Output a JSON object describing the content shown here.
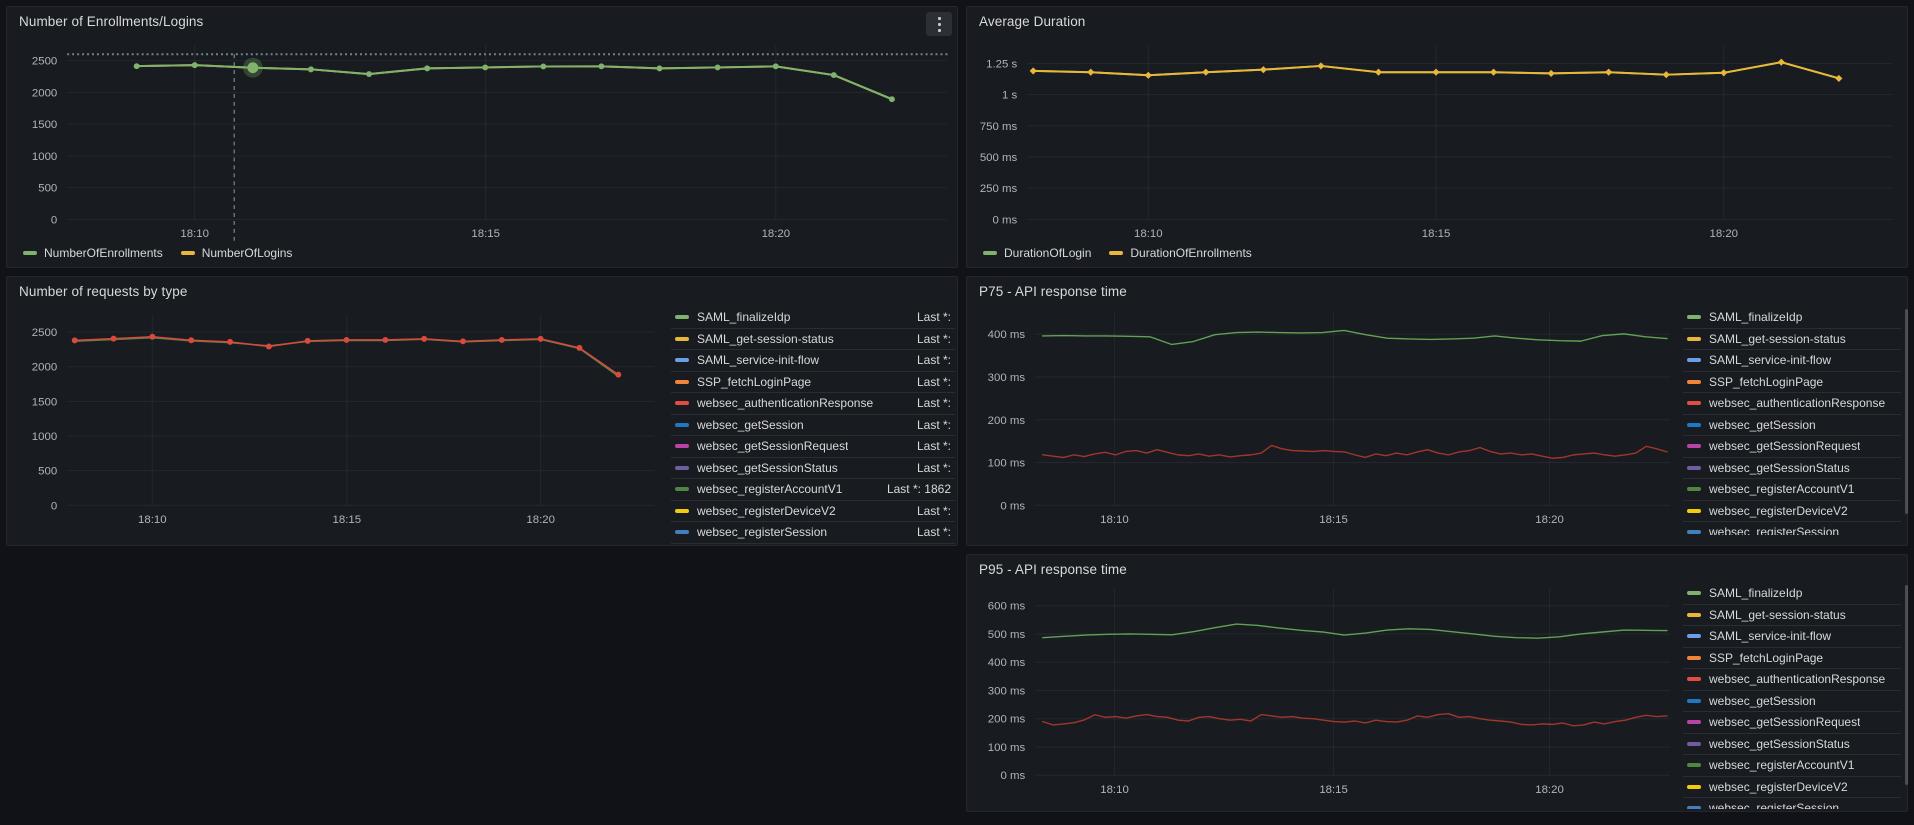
{
  "colors": {
    "page_bg": "#111217",
    "panel_bg": "#181b1f",
    "panel_border": "#23262c",
    "grid": "rgba(204,204,220,0.07)",
    "title_text": "#d8d9da",
    "tick_text": "rgba(204,204,220,0.85)",
    "legend_text": "#d8d9da",
    "threshold": "#6e8594",
    "crosshair": "#5e7d8c"
  },
  "legend_value_prefix": "Last *:",
  "chart_data": [
    {
      "id": "enrollments",
      "type": "line",
      "title": "Number of Enrollments/Logins",
      "ylim": [
        0,
        2750
      ],
      "grid": true,
      "legend_position": "bottom",
      "yticks": [
        {
          "v": 0,
          "label": "0"
        },
        {
          "v": 500,
          "label": "500"
        },
        {
          "v": 1000,
          "label": "1000"
        },
        {
          "v": 1500,
          "label": "1500"
        },
        {
          "v": 2000,
          "label": "2000"
        },
        {
          "v": 2500,
          "label": "2500"
        }
      ],
      "xticks": [
        {
          "f": 0.145,
          "label": "18:10"
        },
        {
          "f": 0.476,
          "label": "18:15"
        },
        {
          "f": 0.806,
          "label": "18:20"
        }
      ],
      "threshold": {
        "v": 2600
      },
      "crosshair_f": 0.19,
      "legend": [
        {
          "label": "NumberOfEnrollments",
          "color": "#7EB26D"
        },
        {
          "label": "NumberOfLogins",
          "color": "#EAB839"
        }
      ],
      "series": [
        {
          "name": "NumberOfLogins",
          "color": "#EAB839",
          "w": 2,
          "f0": 0.079,
          "f1": 0.938,
          "values": [
            2412,
            2428,
            2388,
            2362,
            2288,
            2378,
            2392,
            2408,
            2410,
            2378,
            2392,
            2410,
            2272,
            1892
          ]
        },
        {
          "name": "NumberOfEnrollments",
          "color": "#7EB26D",
          "w": 2,
          "f0": 0.079,
          "f1": 0.938,
          "marker": "circle",
          "hover_index": 2,
          "values": [
            2412,
            2428,
            2388,
            2362,
            2288,
            2378,
            2392,
            2408,
            2410,
            2378,
            2392,
            2410,
            2272,
            1892
          ]
        }
      ]
    },
    {
      "id": "avg_duration",
      "type": "line",
      "title": "Average Duration",
      "ylim": [
        0,
        1400
      ],
      "grid": true,
      "legend_position": "bottom",
      "yticks": [
        {
          "v": 0,
          "label": "0 ms"
        },
        {
          "v": 250,
          "label": "250 ms"
        },
        {
          "v": 500,
          "label": "500 ms"
        },
        {
          "v": 750,
          "label": "750 ms"
        },
        {
          "v": 1000,
          "label": "1 s"
        },
        {
          "v": 1250,
          "label": "1.25 s"
        }
      ],
      "xticks": [
        {
          "f": 0.14,
          "label": "18:10"
        },
        {
          "f": 0.4725,
          "label": "18:15"
        },
        {
          "f": 0.805,
          "label": "18:20"
        }
      ],
      "legend": [
        {
          "label": "DurationOfLogin",
          "color": "#7EB26D"
        },
        {
          "label": "DurationOfEnrollments",
          "color": "#EAB839"
        }
      ],
      "series": [
        {
          "name": "DurationOfLogin",
          "color": "#7EB26D",
          "w": 2,
          "f0": 0.007,
          "f1": 0.938,
          "values": [
            1190,
            1180,
            1155,
            1180,
            1200,
            1230,
            1180,
            1180,
            1180,
            1170,
            1180,
            1160,
            1175,
            1260,
            1130
          ]
        },
        {
          "name": "DurationOfEnrollments",
          "color": "#EAB839",
          "w": 2,
          "f0": 0.007,
          "f1": 0.938,
          "marker": "diamond",
          "values": [
            1190,
            1180,
            1155,
            1180,
            1200,
            1230,
            1180,
            1180,
            1180,
            1170,
            1180,
            1160,
            1175,
            1260,
            1130
          ]
        }
      ]
    },
    {
      "id": "requests",
      "type": "line",
      "title": "Number of requests by type",
      "ylim": [
        0,
        2750
      ],
      "grid": true,
      "legend_position": "right-table",
      "yticks": [
        {
          "v": 0,
          "label": "0"
        },
        {
          "v": 500,
          "label": "500"
        },
        {
          "v": 1000,
          "label": "1000"
        },
        {
          "v": 1500,
          "label": "1500"
        },
        {
          "v": 2000,
          "label": "2000"
        },
        {
          "v": 2500,
          "label": "2500"
        }
      ],
      "xticks": [
        {
          "f": 0.145,
          "label": "18:10"
        },
        {
          "f": 0.476,
          "label": "18:15"
        },
        {
          "f": 0.806,
          "label": "18:20"
        }
      ],
      "legend": [
        {
          "label": "SAML_finalizeIdp",
          "color": "#7EB26D",
          "last": "Last *:"
        },
        {
          "label": "SAML_get-session-status",
          "color": "#EAB839",
          "last": "Last *:"
        },
        {
          "label": "SAML_service-init-flow",
          "color": "#6C9FE8",
          "last": "Last *:"
        },
        {
          "label": "SSP_fetchLoginPage",
          "color": "#EF843C",
          "last": "Last *:"
        },
        {
          "label": "websec_authenticationResponse",
          "color": "#E24D42",
          "last": "Last *:"
        },
        {
          "label": "websec_getSession",
          "color": "#1F78C1",
          "last": "Last *:"
        },
        {
          "label": "websec_getSessionRequest",
          "color": "#BA43A9",
          "last": "Last *:"
        },
        {
          "label": "websec_getSessionStatus",
          "color": "#705DA0",
          "last": "Last *:"
        },
        {
          "label": "websec_registerAccountV1",
          "color": "#508642",
          "last": "Last *: 1862"
        },
        {
          "label": "websec_registerDeviceV2",
          "color": "#F2CC0C",
          "last": "Last *:"
        },
        {
          "label": "websec_registerSession",
          "color": "#447EBC",
          "last": "Last *:"
        }
      ],
      "series": [
        {
          "name": "websec_registerAccountV1",
          "color": "#508642",
          "w": 1.5,
          "f0": 0.013,
          "f1": 0.938,
          "values": [
            2368,
            2392,
            2418,
            2372,
            2348,
            2300,
            2364,
            2380,
            2378,
            2396,
            2358,
            2378,
            2394,
            2262,
            1862
          ]
        },
        {
          "name": "websec_authenticationResponse",
          "color": "#D9493E",
          "w": 1.5,
          "f0": 0.013,
          "f1": 0.938,
          "marker": "circle",
          "values": [
            2380,
            2405,
            2432,
            2382,
            2358,
            2292,
            2372,
            2386,
            2386,
            2402,
            2366,
            2386,
            2402,
            2272,
            1885
          ]
        }
      ]
    },
    {
      "id": "p75",
      "type": "line",
      "title": "P75 - API response time",
      "ylim": [
        0,
        455
      ],
      "grid": true,
      "legend_position": "right-list",
      "yticks": [
        {
          "v": 0,
          "label": "0 ms"
        },
        {
          "v": 100,
          "label": "100 ms"
        },
        {
          "v": 200,
          "label": "200 ms"
        },
        {
          "v": 300,
          "label": "300 ms"
        },
        {
          "v": 400,
          "label": "400 ms"
        }
      ],
      "xticks": [
        {
          "f": 0.125,
          "label": "18:10"
        },
        {
          "f": 0.47,
          "label": "18:15"
        },
        {
          "f": 0.81,
          "label": "18:20"
        }
      ],
      "legend": [
        {
          "label": "SAML_finalizeIdp",
          "color": "#7EB26D"
        },
        {
          "label": "SAML_get-session-status",
          "color": "#EAB839"
        },
        {
          "label": "SAML_service-init-flow",
          "color": "#6C9FE8"
        },
        {
          "label": "SSP_fetchLoginPage",
          "color": "#EF843C"
        },
        {
          "label": "websec_authenticationResponse",
          "color": "#E24D42"
        },
        {
          "label": "websec_getSession",
          "color": "#1F78C1"
        },
        {
          "label": "websec_getSessionRequest",
          "color": "#BA43A9"
        },
        {
          "label": "websec_getSessionStatus",
          "color": "#705DA0"
        },
        {
          "label": "websec_registerAccountV1",
          "color": "#508642"
        },
        {
          "label": "websec_registerDeviceV2",
          "color": "#F2CC0C"
        },
        {
          "label": "websec_registerSession",
          "color": "#447EBC"
        }
      ],
      "series": [
        {
          "name": "SAML_finalizeIdp",
          "color": "#61A156",
          "w": 1.4,
          "f0": 0.012,
          "f1": 0.995,
          "values": [
            396,
            397,
            396,
            396,
            395,
            394,
            376,
            383,
            399,
            404,
            405,
            404,
            403,
            404,
            409,
            399,
            391,
            389,
            388,
            389,
            391,
            396,
            391,
            387,
            385,
            384,
            397,
            401,
            394,
            390
          ]
        },
        {
          "name": "websec_authenticationResponse",
          "color": "#A1372C",
          "w": 1.4,
          "f0": 0.012,
          "f1": 0.995,
          "values": [
            118,
            115,
            112,
            118,
            114,
            120,
            124,
            118,
            126,
            128,
            122,
            130,
            124,
            118,
            116,
            120,
            115,
            118,
            113,
            116,
            118,
            122,
            140,
            132,
            128,
            127,
            126,
            128,
            126,
            125,
            118,
            112,
            120,
            116,
            122,
            118,
            125,
            130,
            122,
            118,
            125,
            128,
            135,
            126,
            120,
            122,
            118,
            120,
            115,
            110,
            112,
            118,
            120,
            122,
            118,
            115,
            118,
            122,
            138,
            132,
            125
          ]
        }
      ]
    },
    {
      "id": "p95",
      "type": "line",
      "title": "P95 - API response time",
      "ylim": [
        0,
        660
      ],
      "grid": true,
      "legend_position": "right-list",
      "yticks": [
        {
          "v": 0,
          "label": "0 ms"
        },
        {
          "v": 100,
          "label": "100 ms"
        },
        {
          "v": 200,
          "label": "200 ms"
        },
        {
          "v": 300,
          "label": "300 ms"
        },
        {
          "v": 400,
          "label": "400 ms"
        },
        {
          "v": 500,
          "label": "500 ms"
        },
        {
          "v": 600,
          "label": "600 ms"
        }
      ],
      "xticks": [
        {
          "f": 0.125,
          "label": "18:10"
        },
        {
          "f": 0.47,
          "label": "18:15"
        },
        {
          "f": 0.81,
          "label": "18:20"
        }
      ],
      "legend": [
        {
          "label": "SAML_finalizeIdp",
          "color": "#7EB26D"
        },
        {
          "label": "SAML_get-session-status",
          "color": "#EAB839"
        },
        {
          "label": "SAML_service-init-flow",
          "color": "#6C9FE8"
        },
        {
          "label": "SSP_fetchLoginPage",
          "color": "#EF843C"
        },
        {
          "label": "websec_authenticationResponse",
          "color": "#E24D42"
        },
        {
          "label": "websec_getSession",
          "color": "#1F78C1"
        },
        {
          "label": "websec_getSessionRequest",
          "color": "#BA43A9"
        },
        {
          "label": "websec_getSessionStatus",
          "color": "#705DA0"
        },
        {
          "label": "websec_registerAccountV1",
          "color": "#508642"
        },
        {
          "label": "websec_registerDeviceV2",
          "color": "#F2CC0C"
        },
        {
          "label": "websec_registerSession",
          "color": "#447EBC"
        }
      ],
      "series": [
        {
          "name": "SAML_finalizeIdp",
          "color": "#61A156",
          "w": 1.4,
          "f0": 0.012,
          "f1": 0.995,
          "values": [
            487,
            492,
            496,
            499,
            500,
            499,
            497,
            508,
            522,
            535,
            530,
            521,
            513,
            507,
            496,
            503,
            514,
            518,
            516,
            508,
            500,
            492,
            487,
            485,
            490,
            500,
            507,
            514,
            513,
            512
          ]
        },
        {
          "name": "websec_authenticationResponse",
          "color": "#A1372C",
          "w": 1.4,
          "f0": 0.012,
          "f1": 0.995,
          "values": [
            190,
            178,
            182,
            186,
            196,
            214,
            205,
            208,
            202,
            210,
            215,
            208,
            205,
            195,
            192,
            205,
            208,
            200,
            195,
            198,
            192,
            215,
            210,
            205,
            208,
            202,
            200,
            195,
            190,
            188,
            192,
            185,
            195,
            190,
            188,
            195,
            210,
            205,
            215,
            218,
            205,
            208,
            200,
            195,
            192,
            188,
            180,
            178,
            182,
            180,
            185,
            175,
            178,
            188,
            182,
            190,
            195,
            205,
            212,
            208,
            210
          ]
        }
      ]
    }
  ]
}
